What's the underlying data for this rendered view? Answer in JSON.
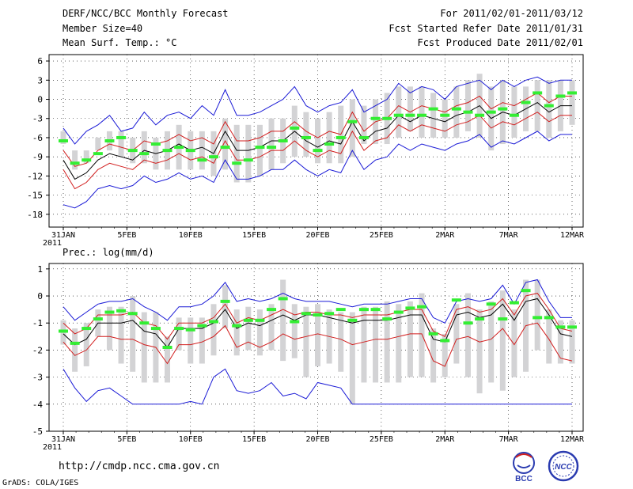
{
  "header": {
    "title": "DERF/NCC/BCC Monthly Forecast",
    "member_size": "Member Size=40",
    "variable": "Mean Surf. Temp.: °C",
    "period": "For 2011/02/01-2011/03/12",
    "fcst_started": "Fcst Started Refer Date 2011/01/31",
    "fcst_produced": "Fcst Produced Date 2011/02/01"
  },
  "footer": {
    "url": "http://cmdp.ncc.cma.gov.cn",
    "grads": "GrADS: COLA/IGES",
    "logo_bcc": "BCC",
    "logo_ncc": "NCC"
  },
  "colors": {
    "box": "#d3d3d5",
    "mean": "#33ee33",
    "median": "#000000",
    "quartile": "#d21e1e",
    "extreme": "#1a1ad6"
  },
  "chart_data": [
    {
      "type": "line",
      "title": "Mean Surf. Temp.: °C",
      "xlabel": "",
      "ylabel": "°C",
      "ylim": [
        -20,
        7
      ],
      "yticks": [
        6,
        3,
        0,
        -3,
        -6,
        -9,
        -12,
        -15,
        -18
      ],
      "x_tick_labels": [
        "31JAN\n2011",
        "5FEB",
        "10FEB",
        "15FEB",
        "20FEB",
        "25FEB",
        "2MAR",
        "7MAR",
        "12MAR"
      ],
      "x_tick_days": [
        0,
        5,
        10,
        15,
        20,
        25,
        30,
        35,
        40
      ],
      "grid": true,
      "series": [
        {
          "name": "max",
          "color": "#1a1ad6",
          "values": [
            -4.5,
            -7,
            -5,
            -4,
            -2.5,
            -5,
            -4.5,
            -2,
            -4,
            -2.5,
            -2,
            -3,
            -1,
            -2.5,
            1.5,
            -2.5,
            -2.5,
            -2,
            -1,
            0,
            2,
            -1,
            -2,
            -1,
            -0.5,
            1.5,
            -2,
            -1,
            0,
            2.5,
            1,
            2,
            1.5,
            0,
            2,
            2.5,
            3,
            1.5,
            3,
            2,
            3,
            3.5,
            2.5,
            3,
            3
          ]
        },
        {
          "name": "q3",
          "color": "#d21e1e",
          "values": [
            -8,
            -10.5,
            -10,
            -8,
            -7,
            -7.5,
            -8,
            -6.5,
            -7,
            -6.5,
            -5.5,
            -6.5,
            -6,
            -7,
            -3.5,
            -6.5,
            -6.5,
            -6,
            -5,
            -5,
            -3.5,
            -5,
            -6,
            -5,
            -5.5,
            -2,
            -5,
            -3.5,
            -3,
            -1,
            -2,
            -1,
            -1.5,
            -2,
            -1,
            -0.5,
            0.5,
            -1.5,
            -0.5,
            -1,
            0,
            1,
            -0.5,
            0.5,
            0.5
          ]
        },
        {
          "name": "median",
          "color": "#000000",
          "values": [
            -9.5,
            -12.5,
            -11.5,
            -9.5,
            -8.5,
            -9,
            -9.5,
            -8,
            -8.5,
            -8,
            -7,
            -8,
            -7.5,
            -8.5,
            -5,
            -8,
            -8,
            -7.5,
            -6.5,
            -6.5,
            -5,
            -6.5,
            -7.5,
            -6.5,
            -7,
            -3.5,
            -6.5,
            -5,
            -4.5,
            -2.5,
            -3.5,
            -2.5,
            -3,
            -3.5,
            -2.5,
            -2,
            -1,
            -3,
            -2,
            -2.5,
            -1.5,
            -0.5,
            -2,
            -1,
            -1
          ]
        },
        {
          "name": "q1",
          "color": "#d21e1e",
          "values": [
            -11,
            -14,
            -13,
            -11,
            -10,
            -10.5,
            -11,
            -9.5,
            -10,
            -9.5,
            -8.5,
            -9.5,
            -9,
            -10,
            -6.5,
            -9.5,
            -9.5,
            -9,
            -8,
            -8,
            -6.5,
            -8,
            -9,
            -8,
            -8.5,
            -5,
            -8,
            -6.5,
            -6,
            -4,
            -5,
            -4,
            -4.5,
            -5,
            -4,
            -3.5,
            -2.5,
            -4.5,
            -3.5,
            -4,
            -3,
            -2,
            -3.5,
            -2.5,
            -2.5
          ]
        },
        {
          "name": "min",
          "color": "#1a1ad6",
          "values": [
            -16.5,
            -17,
            -16,
            -14,
            -13.5,
            -14,
            -13.5,
            -12,
            -13,
            -12.5,
            -11.5,
            -12.5,
            -12,
            -13,
            -9.5,
            -12.5,
            -12.5,
            -12,
            -11,
            -11,
            -9.5,
            -11,
            -12,
            -11,
            -11.5,
            -8,
            -11,
            -9.5,
            -9,
            -7,
            -8,
            -7,
            -7.5,
            -8,
            -7,
            -6.5,
            -5.5,
            -7.5,
            -6.5,
            -7,
            -6,
            -5,
            -6.5,
            -5.5,
            -5.5
          ]
        }
      ],
      "boxes": {
        "low": [
          -7,
          -11,
          -10,
          -8,
          -8,
          -9,
          -10,
          -10,
          -11,
          -11,
          -11,
          -11,
          -11,
          -12,
          -11,
          -13,
          -13,
          -12,
          -11,
          -10,
          -9,
          -9,
          -10,
          -10,
          -10,
          -9,
          -7,
          -7,
          -7,
          -6,
          -5,
          -6,
          -6,
          -6,
          -6,
          -5,
          -6,
          -8,
          -7,
          -6,
          -5,
          -5,
          -6,
          -5,
          -4
        ],
        "high": [
          -5,
          -8,
          -8,
          -6,
          -5,
          -5,
          -6,
          -5,
          -6,
          -5,
          -4,
          -5,
          -5,
          -5,
          -3,
          -4,
          -4,
          -4,
          -3,
          -3,
          -1,
          -2,
          -3,
          -2,
          -1,
          0,
          -1,
          0,
          1,
          2,
          2,
          2,
          1,
          0,
          2,
          3,
          4,
          2,
          3,
          2,
          2,
          3,
          3,
          3,
          3
        ]
      },
      "means": [
        -6.5,
        -10,
        -9.5,
        -8.5,
        -6.5,
        -6,
        -8,
        -8.5,
        -7,
        -8,
        -7.5,
        -8,
        -9.5,
        -9,
        -7.5,
        -10,
        -9.5,
        -7.5,
        -7.5,
        -6.5,
        -4.5,
        -6,
        -8,
        -7,
        -6,
        -3.5,
        -6,
        -3,
        -3,
        -2.5,
        -2.5,
        -2.5,
        -1.5,
        -2.5,
        -1.5,
        -2,
        -2.5,
        -2,
        -1.5,
        -2.5,
        -0.5,
        1,
        -1,
        0.5,
        1
      ]
    },
    {
      "type": "line",
      "title": "Prec.: log(mm/d)",
      "xlabel": "",
      "ylabel": "log(mm/d)",
      "ylim": [
        -5,
        1.2
      ],
      "yticks": [
        1,
        0,
        -1,
        -2,
        -3,
        -4,
        -5
      ],
      "x_tick_labels": [
        "31JAN\n2011",
        "5FEB",
        "10FEB",
        "15FEB",
        "20FEB",
        "25FEB",
        "2MAR",
        "7MAR",
        "12MAR"
      ],
      "x_tick_days": [
        0,
        5,
        10,
        15,
        20,
        25,
        30,
        35,
        40
      ],
      "grid": true,
      "series": [
        {
          "name": "max",
          "color": "#1a1ad6",
          "values": [
            -0.4,
            -0.9,
            -0.6,
            -0.3,
            -0.2,
            -0.2,
            -0.1,
            -0.4,
            -0.6,
            -0.9,
            -0.4,
            -0.4,
            -0.3,
            0,
            0.5,
            -0.2,
            -0.1,
            -0.2,
            -0.1,
            0.1,
            -0.1,
            -0.2,
            -0.2,
            -0.2,
            -0.3,
            -0.4,
            -0.3,
            -0.3,
            -0.3,
            -0.2,
            -0.1,
            -0.1,
            -0.8,
            -1,
            -0.2,
            -0.1,
            -0.2,
            -0.1,
            0.4,
            -0.3,
            0.5,
            0.6,
            -0.2,
            -0.8,
            -0.8
          ]
        },
        {
          "name": "q3",
          "color": "#d21e1e",
          "values": [
            -1,
            -1.4,
            -1.2,
            -0.7,
            -0.7,
            -0.7,
            -0.6,
            -1,
            -1.1,
            -1.6,
            -1,
            -1,
            -1,
            -0.8,
            -0.3,
            -1,
            -0.8,
            -0.9,
            -0.7,
            -0.5,
            -0.7,
            -0.6,
            -0.6,
            -0.7,
            -0.7,
            -0.8,
            -0.7,
            -0.7,
            -0.7,
            -0.6,
            -0.5,
            -0.5,
            -1.3,
            -1.5,
            -0.5,
            -0.4,
            -0.6,
            -0.5,
            -0.1,
            -0.7,
            0,
            0.1,
            -0.5,
            -1.2,
            -1.3
          ]
        },
        {
          "name": "median",
          "color": "#000000",
          "values": [
            -1.4,
            -1.8,
            -1.6,
            -1,
            -1,
            -1,
            -0.9,
            -1.3,
            -1.4,
            -1.9,
            -1.2,
            -1.2,
            -1.2,
            -1,
            -0.5,
            -1.2,
            -1,
            -1.1,
            -0.9,
            -0.7,
            -0.9,
            -0.7,
            -0.7,
            -0.8,
            -0.9,
            -1,
            -0.9,
            -0.9,
            -0.9,
            -0.8,
            -0.7,
            -0.7,
            -1.6,
            -1.7,
            -0.7,
            -0.6,
            -0.8,
            -0.7,
            -0.3,
            -0.9,
            -0.2,
            -0.1,
            -0.7,
            -1.4,
            -1.5
          ]
        },
        {
          "name": "q1",
          "color": "#d21e1e",
          "values": [
            -1.7,
            -2.2,
            -2,
            -1.5,
            -1.5,
            -1.6,
            -1.6,
            -1.8,
            -1.9,
            -2.5,
            -1.8,
            -1.8,
            -1.7,
            -1.5,
            -1.1,
            -1.9,
            -1.7,
            -1.9,
            -1.7,
            -1.4,
            -1.6,
            -1.5,
            -1.4,
            -1.5,
            -1.6,
            -1.8,
            -1.7,
            -1.6,
            -1.6,
            -1.5,
            -1.4,
            -1.4,
            -2.4,
            -2.6,
            -1.6,
            -1.5,
            -1.7,
            -1.6,
            -1.2,
            -1.8,
            -1.1,
            -1,
            -1.6,
            -2.3,
            -2.4
          ]
        },
        {
          "name": "min",
          "color": "#1a1ad6",
          "values": [
            -2.7,
            -3.4,
            -3.9,
            -3.5,
            -3.4,
            -3.7,
            -4,
            -4,
            -4,
            -4,
            -4,
            -3.9,
            -4,
            -3,
            -2.7,
            -3.5,
            -3.6,
            -3.5,
            -3.2,
            -3.7,
            -3.6,
            -3.8,
            -3.2,
            -3.3,
            -3.4,
            -4,
            -4,
            -4,
            -4,
            -4,
            -4,
            -4,
            -4,
            -4,
            -4,
            -4,
            -4,
            -4,
            -4,
            -4,
            -4,
            -4,
            -4,
            -4,
            -4
          ]
        }
      ],
      "boxes": {
        "low": [
          -1.8,
          -2.8,
          -2.6,
          -1.5,
          -2,
          -2.5,
          -2.8,
          -3.2,
          -3.2,
          -3.2,
          -2,
          -2.5,
          -2.5,
          -2.2,
          -1.2,
          -2.2,
          -2,
          -2.2,
          -2,
          -2.4,
          -2.3,
          -3,
          -2.6,
          -2.5,
          -2.8,
          -4,
          -3.2,
          -3.2,
          -3.2,
          -3.2,
          -3,
          -3,
          -3.2,
          -3,
          -2.5,
          -3,
          -3.6,
          -3.2,
          -3.5,
          -3,
          -2.8,
          -2,
          -2.5,
          -2.5,
          -2.5
        ],
        "high": [
          -0.9,
          -1.2,
          -1,
          -0.5,
          -0.4,
          -0.4,
          0,
          -0.6,
          -0.6,
          -1.5,
          -0.8,
          -0.8,
          -0.8,
          -0.3,
          0.4,
          -0.5,
          -0.4,
          -0.5,
          -0.3,
          0.6,
          -0.3,
          -0.4,
          -0.3,
          -0.5,
          -0.6,
          -0.6,
          -0.4,
          -0.4,
          -0.2,
          -0.3,
          -0.2,
          0.1,
          -1.2,
          -1.4,
          -0.3,
          0.1,
          -0.5,
          -0.2,
          0.2,
          -0.5,
          0.6,
          0.6,
          -0.5,
          -0.9,
          -0.9
        ]
      },
      "means": [
        -1.3,
        -1.75,
        -1.2,
        -0.85,
        -0.6,
        -0.55,
        -0.65,
        -1.0,
        -1.2,
        -1.9,
        -1.2,
        -1.25,
        -1.1,
        -0.95,
        -0.2,
        -1.1,
        -0.9,
        -0.9,
        -0.5,
        -0.1,
        -0.95,
        -0.65,
        -0.7,
        -0.65,
        -0.5,
        -0.9,
        -0.5,
        -0.5,
        -0.85,
        -0.6,
        -0.45,
        -0.4,
        -1.4,
        -1.65,
        -0.15,
        -1.0,
        -0.85,
        -0.3,
        -0.85,
        -0.25,
        0.2,
        -0.8,
        -0.8,
        -1.15,
        -1.15
      ]
    }
  ]
}
